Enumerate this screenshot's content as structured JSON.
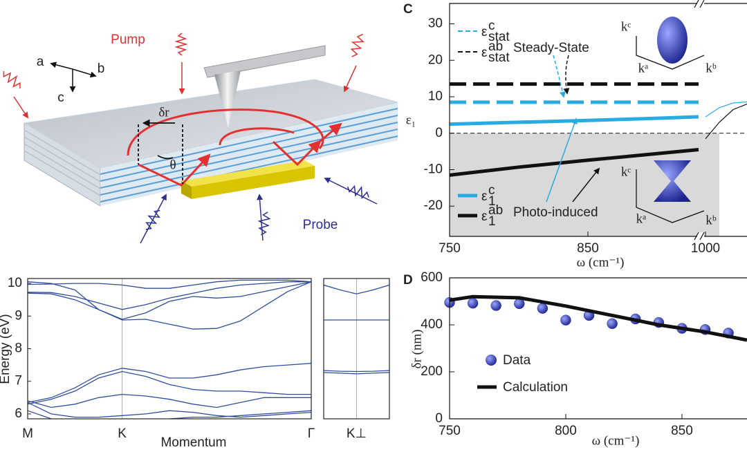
{
  "diagram": {
    "pump": "Pump",
    "probe": "Probe",
    "axis_a": "a",
    "axis_b": "b",
    "axis_c": "c",
    "delta_r": "δr",
    "theta": "θ"
  },
  "chart_data": [
    {
      "type": "line",
      "y_label": "Energy (eV)",
      "x_label": "Momentum",
      "color": "#2e4c9a",
      "xgrid": true,
      "x": [
        0,
        0.0833,
        0.1667,
        0.25,
        0.3333,
        0.4167,
        0.5,
        0.5833,
        0.6667,
        0.75,
        0.8333,
        0.9167,
        1
      ],
      "xlim": [
        0,
        1
      ],
      "xticks": [
        {
          "value": 0,
          "label": "M"
        },
        {
          "value": 0.3333,
          "label": "K"
        },
        {
          "value": 1,
          "label": "Γ"
        }
      ],
      "ylim": [
        5.85,
        10.15
      ],
      "yticks": [
        6,
        7,
        8,
        9,
        10
      ],
      "series": [
        {
          "values": [
            9.97,
            9.98,
            10.0,
            10.0,
            9.95,
            9.85,
            9.85,
            9.95,
            10.05,
            10.1,
            10.1,
            10.1,
            10.05
          ]
        },
        {
          "values": [
            9.73,
            9.72,
            9.6,
            9.4,
            9.2,
            9.35,
            9.55,
            9.7,
            9.85,
            9.95,
            10.0,
            10.05,
            10.05
          ]
        },
        {
          "values": [
            9.7,
            9.68,
            9.5,
            9.2,
            8.9,
            9.1,
            9.45,
            9.6,
            9.55,
            9.6,
            9.75,
            9.9,
            10.05
          ]
        },
        {
          "values": [
            10.05,
            10.0,
            9.8,
            9.2,
            8.88,
            8.9,
            8.75,
            8.6,
            8.62,
            8.85,
            9.3,
            9.75,
            10.05
          ]
        },
        {
          "values": [
            6.35,
            6.5,
            6.8,
            7.2,
            7.4,
            7.3,
            7.1,
            7.1,
            7.2,
            7.35,
            7.45,
            7.5,
            7.55
          ]
        },
        {
          "values": [
            6.3,
            6.45,
            6.7,
            7.1,
            7.3,
            7.15,
            6.9,
            6.75,
            6.7,
            6.7,
            6.65,
            6.6,
            6.6
          ]
        },
        {
          "values": [
            6.4,
            6.2,
            6.3,
            6.5,
            6.6,
            6.55,
            6.45,
            6.3,
            6.2,
            6.35,
            6.5,
            6.5,
            6.5
          ]
        },
        {
          "values": [
            6.35,
            6.0,
            5.9,
            5.9,
            5.95,
            6.0,
            6.1,
            6.05,
            5.95,
            5.9,
            5.95,
            6.0,
            6.05
          ]
        },
        {
          "values": [
            6.1,
            5.85,
            5.8,
            5.8,
            5.8,
            5.8,
            5.85,
            5.9,
            5.9,
            5.95,
            6.0,
            6.05,
            6.1
          ]
        }
      ]
    },
    {
      "type": "line",
      "color": "#2e4c9a",
      "xgrid": true,
      "x": [
        0,
        0.25,
        0.5,
        0.75,
        1
      ],
      "xlim": [
        0,
        1
      ],
      "xticks": [
        {
          "value": 0.5,
          "label": "K⊥"
        }
      ],
      "ylim": [
        5.85,
        10.15
      ],
      "series": [
        {
          "values": [
            9.95,
            9.8,
            9.68,
            9.8,
            9.95
          ]
        },
        {
          "values": [
            8.88,
            8.88,
            8.88,
            8.88,
            8.88
          ]
        },
        {
          "values": [
            7.33,
            7.31,
            7.3,
            7.31,
            7.33
          ]
        },
        {
          "values": [
            7.27,
            7.25,
            7.23,
            7.25,
            7.27
          ]
        }
      ]
    },
    {
      "type": "line",
      "panel_label": "C",
      "x_label": "ω (cm⁻¹)",
      "y_label": "ε₁",
      "xlim": [
        750,
        930
      ],
      "xlim_after_break": [
        1000,
        1030
      ],
      "xticks": [
        750,
        850,
        1000
      ],
      "ylim": [
        -28.3,
        35.6
      ],
      "yticks": [
        -20,
        -10,
        0,
        10,
        20,
        30
      ],
      "shade_below": 0,
      "series": [
        {
          "name": "ε",
          "name_sup": "c",
          "name_sub": "stat",
          "color": "#29abe2",
          "dash": true,
          "x": [
            750,
            930
          ],
          "values": [
            8.5,
            8.5
          ]
        },
        {
          "name": "ε",
          "name_sup": "ab",
          "name_sub": "stat",
          "color": "#111111",
          "dash": true,
          "x": [
            750,
            930
          ],
          "values": [
            13.5,
            13.5
          ]
        },
        {
          "name": "ε",
          "name_sup": "c",
          "name_sub": "1",
          "color": "#29abe2",
          "x": [
            750,
            800,
            850,
            900,
            930
          ],
          "values": [
            2.5,
            3.0,
            3.5,
            4.1,
            4.5
          ]
        },
        {
          "name": "ε",
          "name_sup": "ab",
          "name_sub": "1",
          "color": "#111111",
          "x": [
            750,
            800,
            850,
            900,
            930
          ],
          "values": [
            -11.5,
            -9.3,
            -7.4,
            -5.6,
            -4.5
          ]
        },
        {
          "color": "#29abe2",
          "x": [
            1000,
            1010,
            1020,
            1030
          ],
          "values": [
            4.5,
            7.0,
            8.3,
            8.6
          ]
        },
        {
          "color": "#111111",
          "x": [
            1000,
            1010,
            1020,
            1030
          ],
          "values": [
            -1.5,
            3.0,
            6.5,
            8.0
          ]
        }
      ],
      "annotations": [
        "Steady-State",
        "Photo-induced"
      ],
      "inset_labels": [
        "kᶜ",
        "kᵃ",
        "kᵇ",
        "kᶜ",
        "kᵃ",
        "kᵇ"
      ]
    },
    {
      "type": "scatter",
      "panel_label": "D",
      "x_label": "ω (cm⁻¹)",
      "y_label": "δr (nm)",
      "xlim": [
        750,
        878
      ],
      "xticks": [
        750,
        800,
        850
      ],
      "ylim": [
        0,
        600
      ],
      "yticks": [
        0,
        200,
        400,
        600
      ],
      "series": [
        {
          "name": "Data",
          "type": "scatter",
          "color": "#2a2f9e",
          "x": [
            750,
            760,
            770,
            780,
            790,
            800,
            810,
            820,
            830,
            840,
            850,
            860,
            870
          ],
          "values": [
            495,
            492,
            482,
            490,
            470,
            420,
            440,
            405,
            425,
            410,
            385,
            380,
            365
          ]
        },
        {
          "name": "Calculation",
          "type": "line",
          "color": "#111111",
          "x": [
            750,
            760,
            780,
            800,
            820,
            840,
            860,
            878
          ],
          "values": [
            505,
            520,
            515,
            480,
            440,
            400,
            370,
            335
          ]
        }
      ]
    }
  ]
}
